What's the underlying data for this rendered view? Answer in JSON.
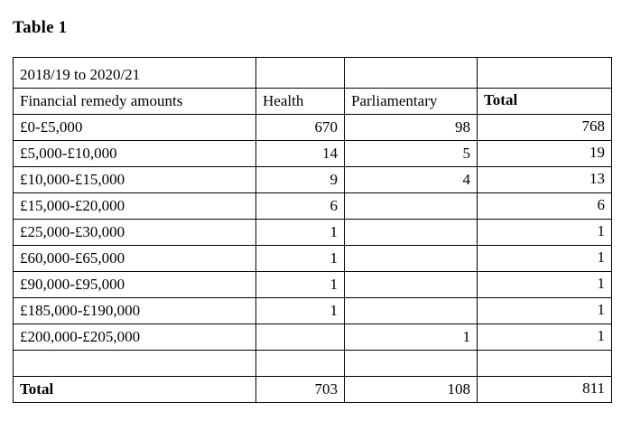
{
  "title": "Table 1",
  "colors": {
    "background": "#ffffff",
    "text": "#000000",
    "border": "#000000"
  },
  "table": {
    "period": "2018/19 to 2020/21",
    "columns": {
      "label": "Financial remedy amounts",
      "health": "Health",
      "parliamentary": "Parliamentary",
      "total": "Total"
    },
    "rows": [
      {
        "label": "£0-£5,000",
        "health": "670",
        "parliamentary": "98",
        "total": "768"
      },
      {
        "label": "£5,000-£10,000",
        "health": "14",
        "parliamentary": "5",
        "total": "19"
      },
      {
        "label": "£10,000-£15,000",
        "health": "9",
        "parliamentary": "4",
        "total": "13"
      },
      {
        "label": "£15,000-£20,000",
        "health": "6",
        "parliamentary": "",
        "total": "6"
      },
      {
        "label": "£25,000-£30,000",
        "health": "1",
        "parliamentary": "",
        "total": "1"
      },
      {
        "label": "£60,000-£65,000",
        "health": "1",
        "parliamentary": "",
        "total": "1"
      },
      {
        "label": "£90,000-£95,000",
        "health": "1",
        "parliamentary": "",
        "total": "1"
      },
      {
        "label": "£185,000-£190,000",
        "health": "1",
        "parliamentary": "",
        "total": "1"
      },
      {
        "label": "£200,000-£205,000",
        "health": "",
        "parliamentary": "1",
        "total": "1"
      }
    ],
    "totals": {
      "label": "Total",
      "health": "703",
      "parliamentary": "108",
      "total": "811"
    }
  }
}
